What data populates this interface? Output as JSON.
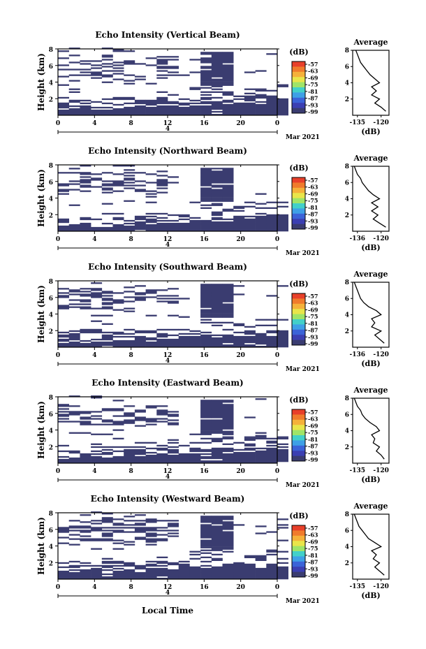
{
  "colors": {
    "echo": "#3a3c70",
    "background": "#ffffff",
    "axis": "#000000"
  },
  "shared": {
    "ylabel": "Height (km)",
    "y_ticks": [
      "2",
      "4",
      "6",
      "8"
    ],
    "x_ticks": [
      "0",
      "4",
      "8",
      "12",
      "16",
      "20",
      "0"
    ],
    "day_label": "4",
    "month_label": "Mar 2021",
    "xlabel_bottom": "Local Time",
    "colorbar": {
      "unit": "(dB)",
      "ticks": [
        "-57",
        "-63",
        "-69",
        "-75",
        "-81",
        "-87",
        "-93",
        "-99"
      ],
      "colors": [
        "#e8402a",
        "#f07b2c",
        "#f5b13a",
        "#e9e54a",
        "#9fe468",
        "#42d0c9",
        "#3ea0e6",
        "#3b63d8",
        "#3b3fb2",
        "#3a3c70"
      ]
    },
    "avg_title": "Average",
    "avg_unit": "(dB)"
  },
  "chart_data": [
    {
      "type": "heatmap",
      "title": "Echo Intensity (Vertical Beam)",
      "x_range_hours": [
        0,
        24
      ],
      "y_range_km": [
        0,
        8
      ],
      "avg_profile": {
        "xlabel_ticks": [
          "-135",
          "-120"
        ],
        "xlim": [
          -138,
          -115
        ],
        "heights": [
          0.5,
          1,
          1.5,
          2,
          2.5,
          3,
          3.5,
          4,
          4.5,
          5,
          5.5,
          6,
          6.5,
          7,
          7.5,
          8
        ],
        "values": [
          -117,
          -120,
          -124,
          -121,
          -126,
          -123,
          -126,
          -121,
          -124,
          -127,
          -129,
          -131,
          -133,
          -134,
          -135,
          -136
        ]
      }
    },
    {
      "type": "heatmap",
      "title": "Echo Intensity (Northward Beam)",
      "x_range_hours": [
        0,
        24
      ],
      "y_range_km": [
        0,
        8
      ],
      "avg_profile": {
        "xlabel_ticks": [
          "-136",
          "-120"
        ],
        "xlim": [
          -138,
          -115
        ],
        "heights": [
          0.5,
          1,
          1.5,
          2,
          2.5,
          3,
          3.5,
          4,
          4.5,
          5,
          5.5,
          6,
          6.5,
          7,
          7.5,
          8
        ],
        "values": [
          -117,
          -121,
          -125,
          -122,
          -126,
          -122,
          -126,
          -121,
          -125,
          -128,
          -130,
          -132,
          -133,
          -135,
          -136,
          -137
        ]
      }
    },
    {
      "type": "heatmap",
      "title": "Echo Intensity (Southward Beam)",
      "x_range_hours": [
        0,
        24
      ],
      "y_range_km": [
        0,
        8
      ],
      "avg_profile": {
        "xlabel_ticks": [
          "-136",
          "-120"
        ],
        "xlim": [
          -138,
          -115
        ],
        "heights": [
          0.5,
          1,
          1.5,
          2,
          2.5,
          3,
          3.5,
          4,
          4.5,
          5,
          5.5,
          6,
          6.5,
          7,
          7.5,
          8
        ],
        "values": [
          -118,
          -121,
          -124,
          -120,
          -126,
          -124,
          -126,
          -120,
          -123,
          -128,
          -131,
          -133,
          -134,
          -135,
          -136,
          -137
        ]
      }
    },
    {
      "type": "heatmap",
      "title": "Echo Intensity (Eastward Beam)",
      "x_range_hours": [
        0,
        24
      ],
      "y_range_km": [
        0,
        8
      ],
      "avg_profile": {
        "xlabel_ticks": [
          "-135",
          "-120"
        ],
        "xlim": [
          -138,
          -115
        ],
        "heights": [
          0.5,
          1,
          1.5,
          2,
          2.5,
          3,
          3.5,
          4,
          4.5,
          5,
          5.5,
          6,
          6.5,
          7,
          7.5,
          8
        ],
        "values": [
          -118,
          -120,
          -123,
          -121,
          -125,
          -124,
          -126,
          -121,
          -123,
          -127,
          -130,
          -132,
          -133,
          -135,
          -136,
          -137
        ]
      }
    },
    {
      "type": "heatmap",
      "title": "Echo Intensity (Westward Beam)",
      "x_range_hours": [
        0,
        24
      ],
      "y_range_km": [
        0,
        8
      ],
      "avg_profile": {
        "xlabel_ticks": [
          "-135",
          "-120"
        ],
        "xlim": [
          -138,
          -115
        ],
        "heights": [
          0.5,
          1,
          1.5,
          2,
          2.5,
          3,
          3.5,
          4,
          4.5,
          5,
          5.5,
          6,
          6.5,
          7,
          7.5,
          8
        ],
        "values": [
          -118,
          -121,
          -124,
          -121,
          -125,
          -123,
          -126,
          -120,
          -124,
          -128,
          -130,
          -132,
          -134,
          -135,
          -136,
          -137
        ]
      }
    }
  ]
}
